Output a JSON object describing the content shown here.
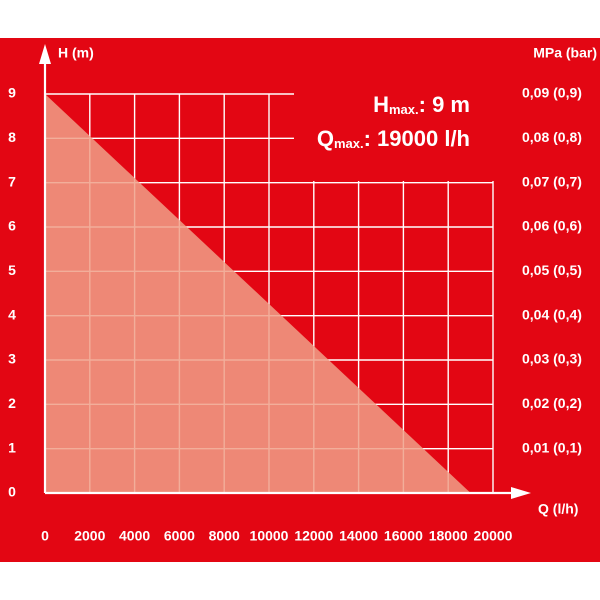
{
  "chart_data": {
    "type": "area",
    "ylabel": "H (m)",
    "xlabel": "Q (l/h)",
    "y2label": "MPa (bar)",
    "annotations": [
      {
        "main": "H",
        "sub": "max.",
        "rest": ": 9 m"
      },
      {
        "main": "Q",
        "sub": "max.",
        "rest": ": 19000 l/h"
      }
    ],
    "x": [
      0,
      19000
    ],
    "values": [
      9,
      0
    ],
    "color": "#f0a088",
    "xlim": [
      0,
      20000
    ],
    "xticks": [
      0,
      2000,
      4000,
      6000,
      8000,
      10000,
      12000,
      14000,
      16000,
      18000,
      20000
    ],
    "ylim": [
      0,
      9
    ],
    "yticks": [
      0,
      1,
      2,
      3,
      4,
      5,
      6,
      7,
      8,
      9
    ],
    "y2lim": [
      0,
      0.09
    ],
    "y2ticks": [
      {
        "value": 0.01,
        "label": "0,01 (0,1)"
      },
      {
        "value": 0.02,
        "label": "0,02 (0,2)"
      },
      {
        "value": 0.03,
        "label": "0,03 (0,3)"
      },
      {
        "value": 0.04,
        "label": "0,04 (0,4)"
      },
      {
        "value": 0.05,
        "label": "0,05 (0,5)"
      },
      {
        "value": 0.06,
        "label": "0,06 (0,6)"
      },
      {
        "value": 0.07,
        "label": "0,07 (0,7)"
      },
      {
        "value": 0.08,
        "label": "0,08 (0,8)"
      },
      {
        "value": 0.09,
        "label": "0,09 (0,9)"
      }
    ],
    "grid": true
  }
}
